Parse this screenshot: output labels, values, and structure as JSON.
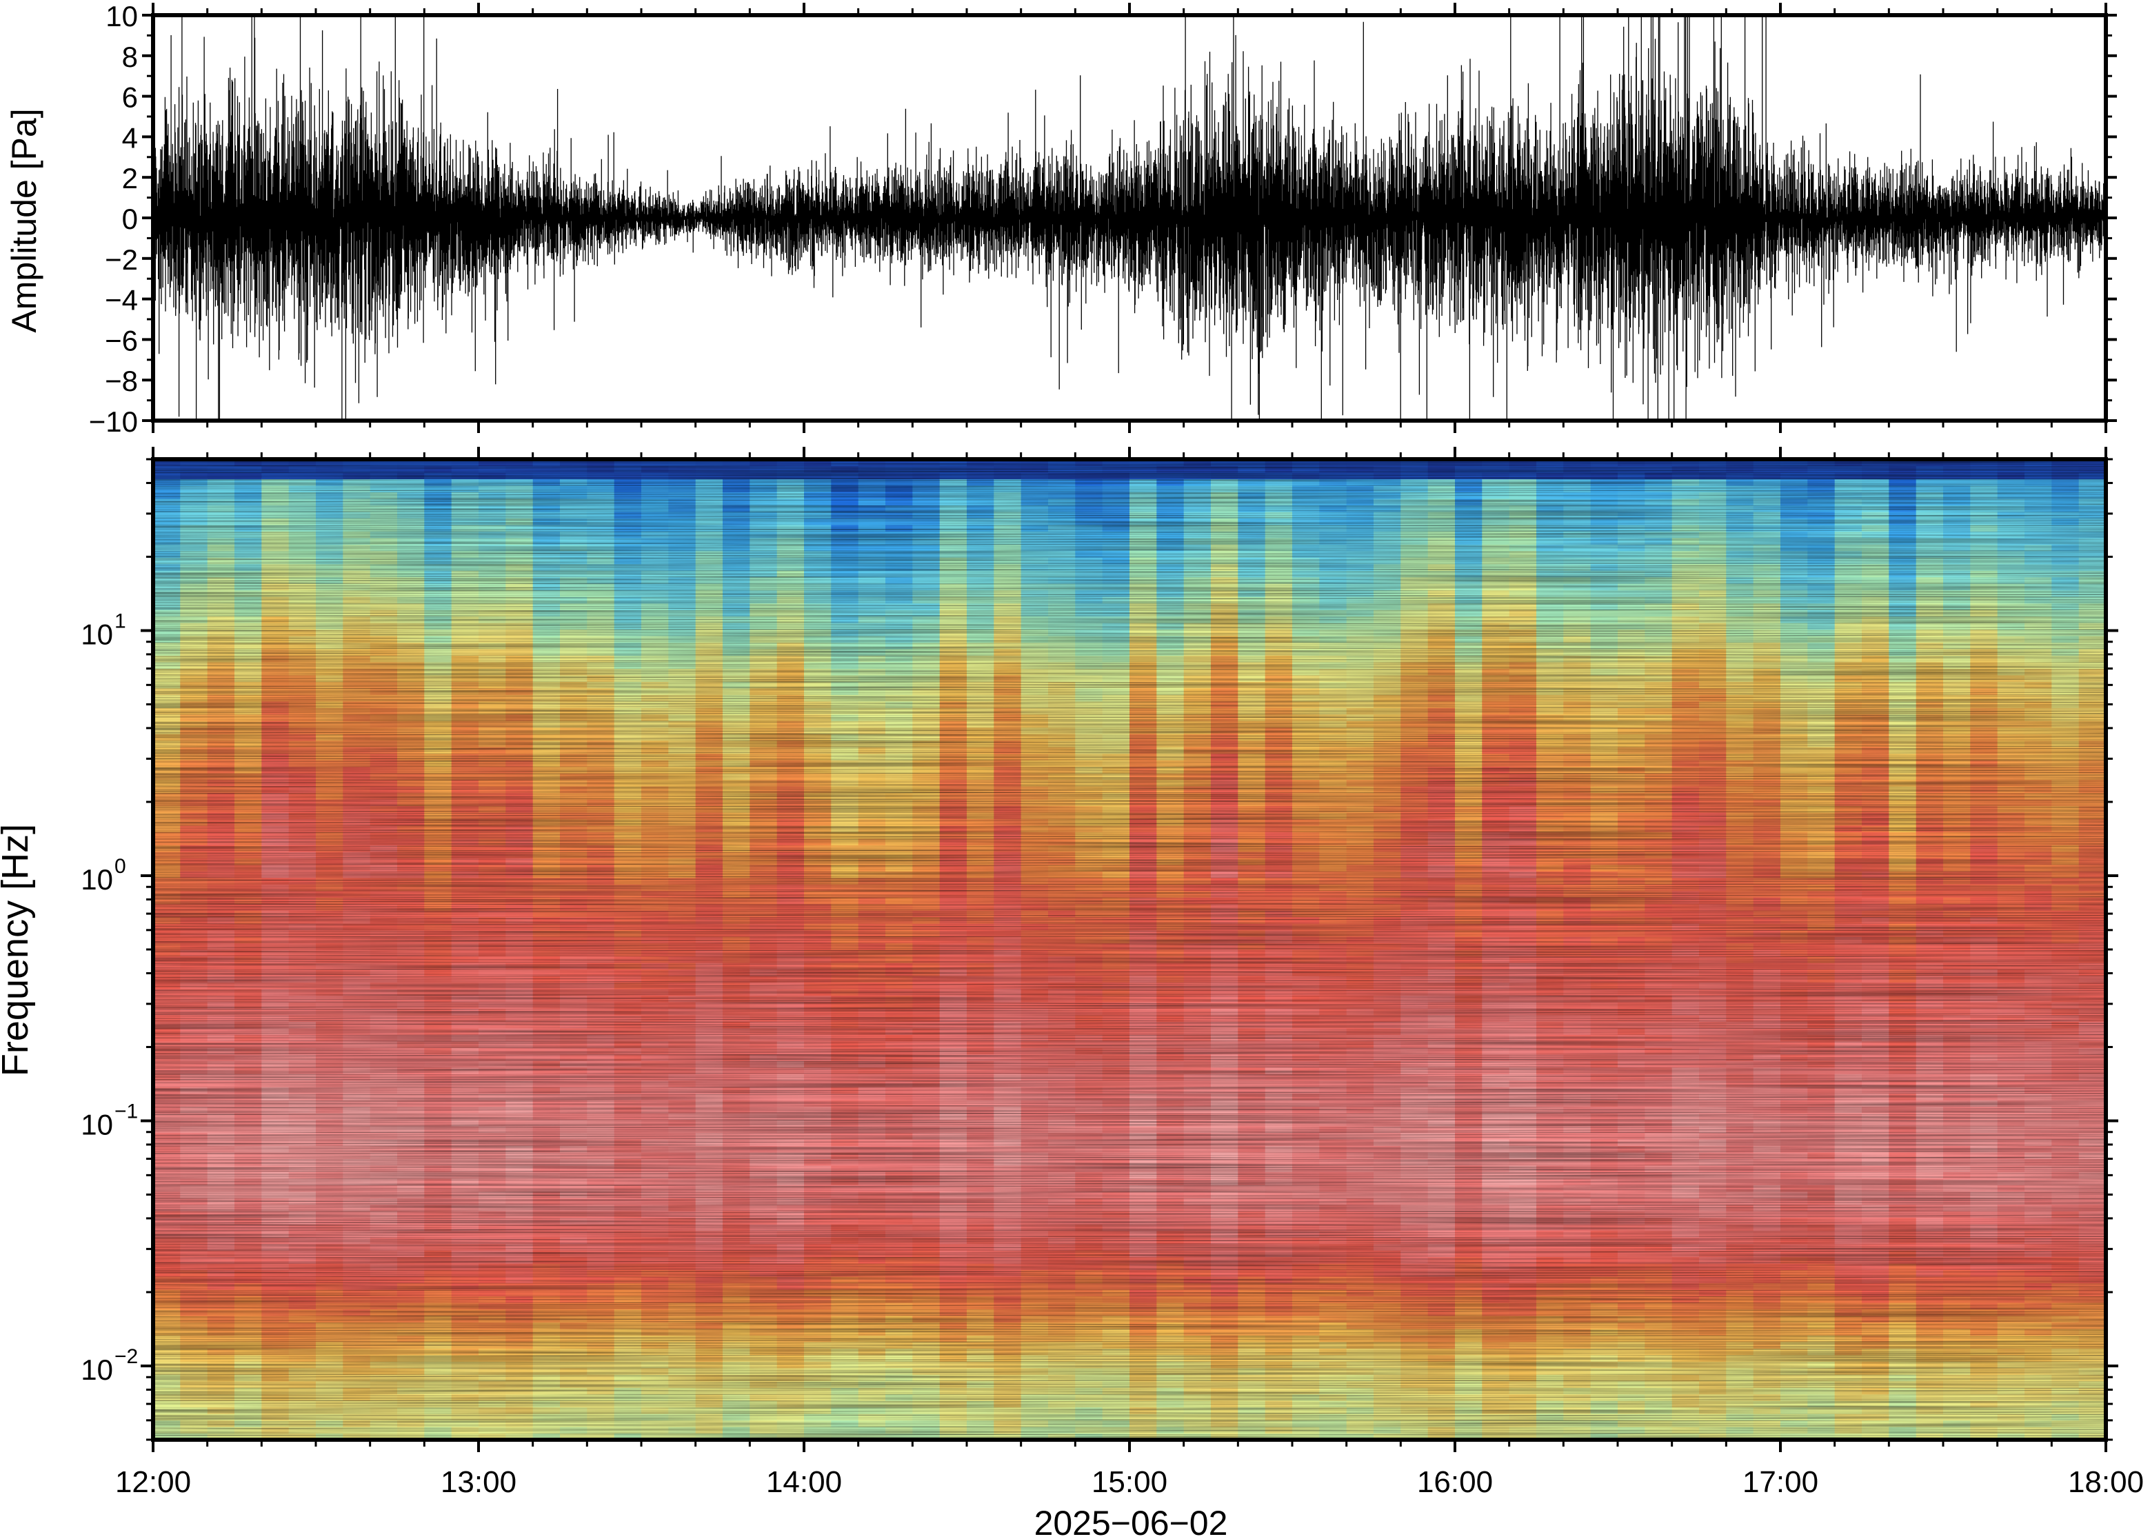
{
  "chart_data": [
    {
      "type": "line",
      "panel": "waveform",
      "ylabel": "Amplitude [Pa]",
      "xlabel": "2025−06−02",
      "ylim": [
        -10,
        10
      ],
      "y_ticks": [
        {
          "value": 10,
          "label": "10"
        },
        {
          "value": 8,
          "label": "8"
        },
        {
          "value": 6,
          "label": "6"
        },
        {
          "value": 4,
          "label": "4"
        },
        {
          "value": 2,
          "label": "2"
        },
        {
          "value": 0,
          "label": "0"
        },
        {
          "value": -2,
          "label": "−2"
        },
        {
          "value": -4,
          "label": "−4"
        },
        {
          "value": -6,
          "label": "−6"
        },
        {
          "value": -8,
          "label": "−8"
        },
        {
          "value": -10,
          "label": "−10"
        }
      ],
      "x_ticks": [
        "12:00",
        "13:00",
        "14:00",
        "15:00",
        "16:00",
        "17:00",
        "18:00"
      ],
      "xlim": [
        "12:00",
        "18:00"
      ],
      "envelope": {
        "x": [
          "12:00",
          "12:10",
          "12:20",
          "12:30",
          "12:40",
          "12:50",
          "13:00",
          "13:10",
          "13:20",
          "13:30",
          "13:40",
          "13:50",
          "14:00",
          "14:10",
          "14:20",
          "14:30",
          "14:40",
          "14:50",
          "15:00",
          "15:10",
          "15:20",
          "15:30",
          "15:40",
          "15:50",
          "16:00",
          "16:10",
          "16:20",
          "16:30",
          "16:40",
          "16:50",
          "17:00",
          "17:10",
          "17:20",
          "17:30",
          "17:40",
          "17:50",
          "18:00"
        ],
        "amplitude": [
          4.5,
          5.5,
          6.0,
          5.0,
          6.0,
          4.5,
          3.5,
          2.5,
          2.0,
          1.2,
          0.8,
          2.0,
          2.2,
          2.0,
          2.5,
          2.6,
          2.5,
          3.0,
          3.2,
          5.5,
          6.5,
          5.0,
          4.0,
          4.0,
          5.0,
          5.5,
          5.0,
          6.5,
          7.0,
          6.5,
          3.0,
          2.5,
          2.5,
          2.5,
          2.2,
          2.3,
          2.0
        ]
      }
    },
    {
      "type": "heatmap",
      "panel": "spectrogram",
      "ylabel": "Frequency [Hz]",
      "xlabel": "2025−06−02",
      "y_scale": "log",
      "ylim": [
        0.005,
        50
      ],
      "y_ticks": [
        {
          "value": 10,
          "base": "10",
          "exp": "1"
        },
        {
          "value": 1,
          "base": "10",
          "exp": "0"
        },
        {
          "value": 0.1,
          "base": "10",
          "exp": "−1"
        },
        {
          "value": 0.01,
          "base": "10",
          "exp": "−2"
        }
      ],
      "x_ticks": [
        "12:00",
        "13:00",
        "14:00",
        "15:00",
        "16:00",
        "17:00",
        "18:00"
      ],
      "xlim": [
        "12:00",
        "18:00"
      ],
      "colormap": [
        "#1a2a8a",
        "#1f6fe0",
        "#3fb0f0",
        "#6ed8e8",
        "#a8ecb8",
        "#e9f08c",
        "#f5c055",
        "#f58a45",
        "#ee5b4e",
        "#f07b7b",
        "#f7a8a8"
      ]
    }
  ]
}
